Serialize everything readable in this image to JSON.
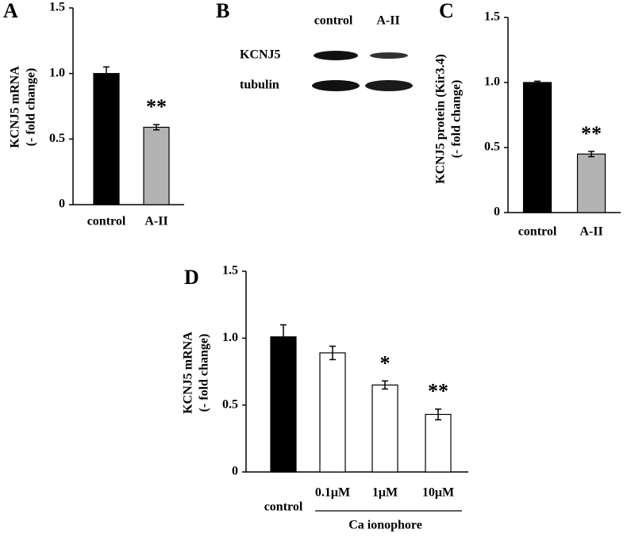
{
  "chart_data": [
    {
      "type": "bar",
      "panel": "A",
      "ylabel": [
        "KCNJ5 mRNA",
        "(- fold change)"
      ],
      "categories": [
        "control",
        "A-II"
      ],
      "values": [
        1.0,
        0.59
      ],
      "errors": [
        0.05,
        0.02
      ],
      "colors": [
        "#000000",
        "#b3b3b3"
      ],
      "annotations": [
        null,
        "**"
      ],
      "ylim": [
        0,
        1.5
      ],
      "yticks": [
        0,
        0.5,
        {
          "value": 1,
          "label": "1.0"
        },
        1.5
      ]
    },
    {
      "type": "bar",
      "panel": "C",
      "ylabel": [
        "KCNJ5 protein (Kir3.4)",
        "(- fold change)"
      ],
      "categories": [
        "control",
        "A-II"
      ],
      "values": [
        1.0,
        0.45
      ],
      "errors": [
        0.01,
        0.02
      ],
      "colors": [
        "#000000",
        "#b3b3b3"
      ],
      "annotations": [
        null,
        "**"
      ],
      "ylim": [
        0,
        1.5
      ],
      "yticks": [
        0,
        0.5,
        {
          "value": 1,
          "label": "1.0"
        },
        1.5
      ]
    },
    {
      "type": "bar",
      "panel": "D",
      "ylabel": [
        "KCNJ5 mRNA",
        "(- fold change)"
      ],
      "categories": [
        "control",
        "0.1μM",
        "1μM",
        "10μM"
      ],
      "values": [
        1.01,
        0.89,
        0.65,
        0.43
      ],
      "errors": [
        0.09,
        0.05,
        0.03,
        0.04
      ],
      "colors": [
        "#000000",
        "#ffffff",
        "#ffffff",
        "#ffffff"
      ],
      "annotations": [
        null,
        null,
        "*",
        "**"
      ],
      "group_label": "Ca ionophore",
      "ylim": [
        0,
        1.5
      ],
      "yticks": [
        0,
        0.5,
        {
          "value": 1,
          "label": "1.0"
        },
        1.5
      ]
    }
  ],
  "blot": {
    "panel": "B",
    "columns": [
      "control",
      "A-II"
    ],
    "rows": [
      "KCNJ5",
      "tubulin"
    ]
  }
}
